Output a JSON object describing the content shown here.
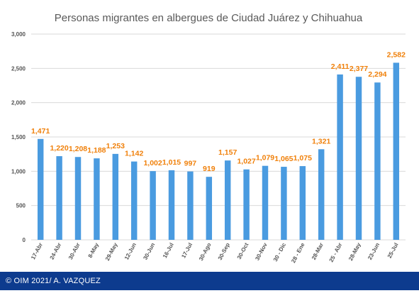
{
  "chart_data": {
    "type": "bar",
    "title": "Personas migrantes en albergues de Ciudad Juárez y Chihuahua",
    "categories": [
      "17-Abr",
      "24-Abr",
      "30-Abr",
      "8-May",
      "29-May",
      "12-Jun",
      "30-Jun",
      "16-Jul",
      "17-Jul",
      "30-Ago",
      "30-Sep",
      "30-Oct",
      "30-Nov",
      "30 - Dic",
      "28 - Ene",
      "28-Mar",
      "25 - Abr",
      "28-May",
      "23-Jun",
      "25-Jul"
    ],
    "values": [
      1471,
      1220,
      1208,
      1188,
      1253,
      1142,
      1002,
      1015,
      997,
      919,
      1157,
      1027,
      1079,
      1065,
      1075,
      1321,
      2411,
      2377,
      2294,
      2582
    ],
    "value_labels": [
      "1,471",
      "1,220",
      "1,208",
      "1,188",
      "1,253",
      "1,142",
      "1,002",
      "1,015",
      "997",
      "919",
      "1,157",
      "1,027",
      "1,079",
      "1,065",
      "1,075",
      "1,321",
      "2,411",
      "2,377",
      "2,294",
      "2,582"
    ],
    "y_ticks": [
      0,
      500,
      1000,
      1500,
      2000,
      2500,
      3000
    ],
    "y_tick_labels": [
      "0",
      "500",
      "1,000",
      "1,500",
      "2,000",
      "2,500",
      "3,000"
    ],
    "ylim": [
      0,
      3000
    ],
    "xlabel": "",
    "ylabel": "",
    "grid": true,
    "legend": "none",
    "colors": {
      "bar": "#4a9be0",
      "data_label": "#f0800a",
      "grid": "#d9d9d9",
      "title": "#595959",
      "tick": "#555555"
    }
  },
  "footer": {
    "text": "© OIM  2021/ A. VAZQUEZ"
  }
}
